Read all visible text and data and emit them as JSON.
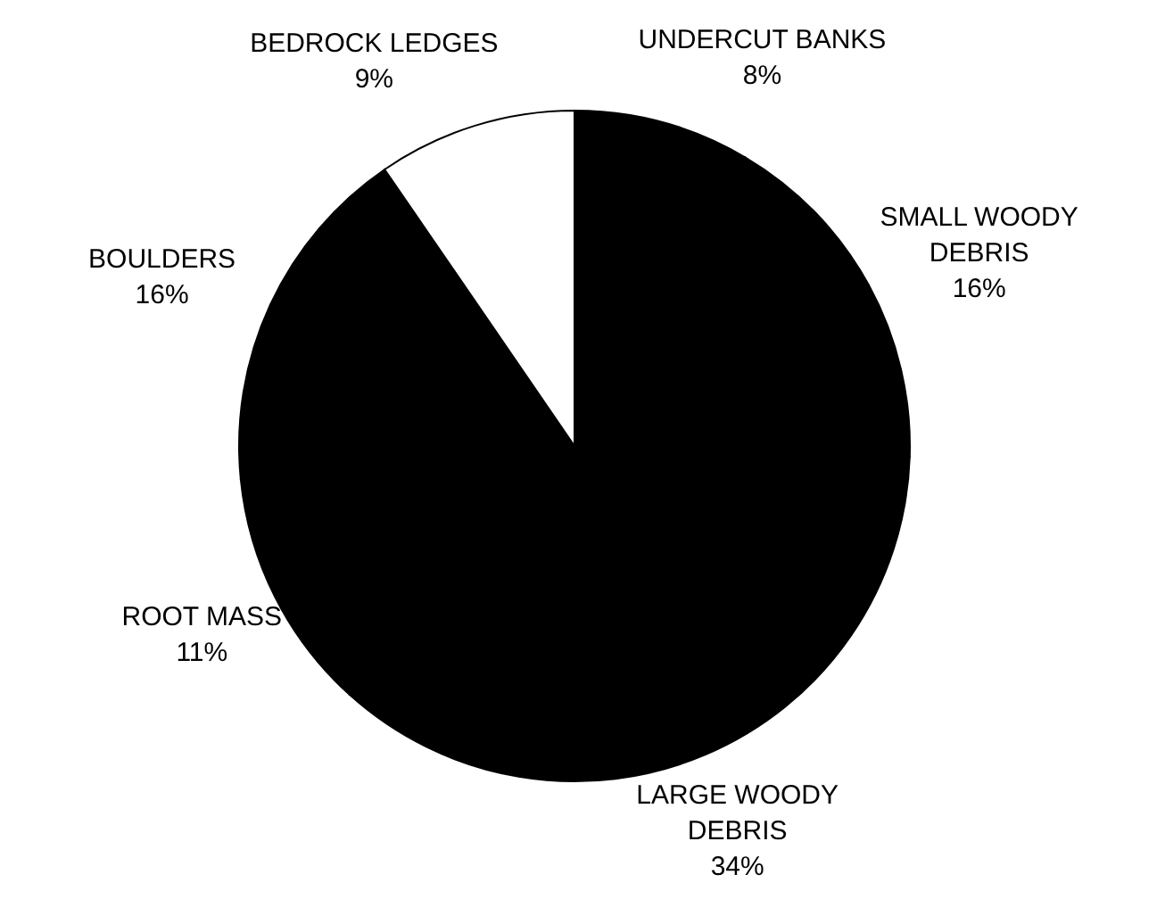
{
  "chart_data": {
    "type": "pie",
    "categories": [
      "UNDERCUT BANKS",
      "SMALL WOODY DEBRIS",
      "LARGE WOODY DEBRIS",
      "ROOT MASS",
      "BOULDERS",
      "BEDROCK LEDGES"
    ],
    "values": [
      8,
      16,
      34,
      11,
      16,
      9
    ],
    "value_labels": [
      "8%",
      "16%",
      "34%",
      "11%",
      "16%",
      "9%"
    ],
    "colors": [
      "#000000",
      "#000000",
      "#000000",
      "#000000",
      "#000000",
      "#ffffff"
    ],
    "legend": false
  }
}
